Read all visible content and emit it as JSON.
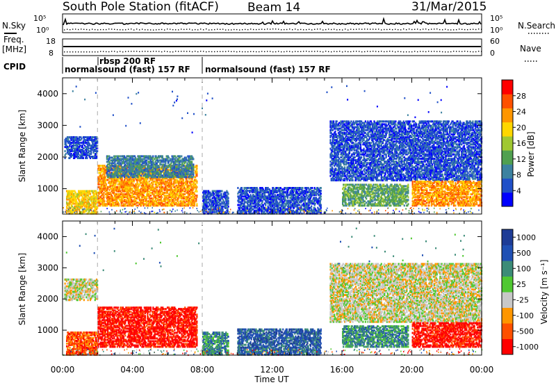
{
  "title": {
    "station": "South Pole Station (fitACF)",
    "beam": "Beam 14",
    "date": "31/Mar/2015"
  },
  "header_panels": {
    "nsky_label": "N.Sky",
    "freq_label_line1": "Freq.",
    "freq_label_line2": "[MHz]",
    "cpid_label": "CPID",
    "nsearch_label": "N.Search",
    "nave_label": "Nave",
    "noise_ticks": [
      "10^5",
      "10^0"
    ],
    "freq_ticks": [
      "18",
      "8"
    ],
    "nave_ticks": [
      "60",
      "0"
    ],
    "cpid_segments": [
      {
        "start_hour": 0.0,
        "text": "normalsound (fast) 157 RF"
      },
      {
        "start_hour": 2.0,
        "text": "rbsp 200 RF"
      },
      {
        "start_hour": 8.0,
        "text": "normalsound (fast) 157 RF"
      }
    ]
  },
  "colors": {
    "power_scale": [
      "#0000ff",
      "#2050c8",
      "#3c82a0",
      "#50a050",
      "#a0c832",
      "#ffd700",
      "#ff9600",
      "#ff5000",
      "#ff0000"
    ],
    "velocity_scale": [
      "#ff0000",
      "#ff5000",
      "#ff9600",
      "#c8c8c8",
      "#50c832",
      "#3c8c78",
      "#2050b4",
      "#1e3c96"
    ],
    "ground_scatter": "#c8c8c8"
  },
  "chart_data": [
    {
      "type": "heatmap",
      "name": "power",
      "xlabel": "",
      "ylabel": "Slant Range [km]",
      "x_range_hours": [
        0,
        24
      ],
      "y_range_km": [
        200,
        4500
      ],
      "y_ticks": [
        "1000",
        "2000",
        "3000",
        "4000"
      ],
      "colorbar_label": "Power [dB]",
      "colorbar_ticks": [
        "4",
        "8",
        "12",
        "16",
        "20",
        "24",
        "28"
      ],
      "colorbar_range": [
        0,
        32
      ],
      "regions": [
        {
          "t0": 0.2,
          "t1": 2.0,
          "r0": 250,
          "r1": 1000,
          "level": 24
        },
        {
          "t0": 2.0,
          "t1": 7.7,
          "r0": 500,
          "r1": 1800,
          "level": 26
        },
        {
          "t0": 2.5,
          "t1": 7.5,
          "r0": 1400,
          "r1": 2100,
          "level": 12
        },
        {
          "t0": 0.1,
          "t1": 2.0,
          "r0": 2000,
          "r1": 2700,
          "level": 8
        },
        {
          "t0": 8.0,
          "t1": 9.5,
          "r0": 250,
          "r1": 1000,
          "level": 8
        },
        {
          "t0": 10.0,
          "t1": 14.8,
          "r0": 250,
          "r1": 1100,
          "level": 8
        },
        {
          "t0": 15.3,
          "t1": 24.0,
          "r0": 1300,
          "r1": 3200,
          "level": 8
        },
        {
          "t0": 16.0,
          "t1": 19.8,
          "r0": 500,
          "r1": 1200,
          "level": 14
        },
        {
          "t0": 20.0,
          "t1": 24.0,
          "r0": 500,
          "r1": 1300,
          "level": 28
        }
      ]
    },
    {
      "type": "heatmap",
      "name": "velocity",
      "xlabel": "Time UT",
      "ylabel": "Slant Range [km]",
      "x_range_hours": [
        0,
        24
      ],
      "x_ticks": [
        "00:00",
        "04:00",
        "08:00",
        "12:00",
        "16:00",
        "20:00",
        "00:00"
      ],
      "y_range_km": [
        200,
        4500
      ],
      "y_ticks": [
        "1000",
        "2000",
        "3000",
        "4000"
      ],
      "colorbar_label": "Velocity [m s^-1]",
      "colorbar_ticks": [
        "1000",
        "500",
        "100",
        "25",
        "-25",
        "-100",
        "-500",
        "-1000"
      ],
      "regions": [
        {
          "t0": 0.2,
          "t1": 2.0,
          "r0": 250,
          "r1": 1000,
          "level": -300
        },
        {
          "t0": 2.0,
          "t1": 7.7,
          "r0": 500,
          "r1": 1800,
          "level": -500
        },
        {
          "t0": 0.1,
          "t1": 2.0,
          "r0": 2000,
          "r1": 2700,
          "level": 0
        },
        {
          "t0": 8.0,
          "t1": 9.5,
          "r0": 250,
          "r1": 1000,
          "level": 200
        },
        {
          "t0": 10.0,
          "t1": 14.8,
          "r0": 250,
          "r1": 1100,
          "level": 300
        },
        {
          "t0": 15.3,
          "t1": 24.0,
          "r0": 1300,
          "r1": 3200,
          "level": 0
        },
        {
          "t0": 16.0,
          "t1": 19.8,
          "r0": 500,
          "r1": 1200,
          "level": 100
        },
        {
          "t0": 20.0,
          "t1": 24.0,
          "r0": 500,
          "r1": 1300,
          "level": -400
        }
      ]
    }
  ]
}
